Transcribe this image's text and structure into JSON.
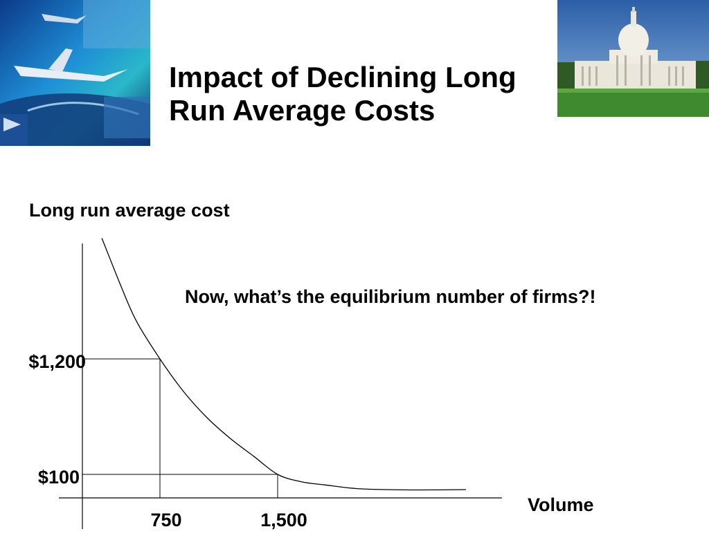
{
  "slide": {
    "title_line1": "Impact of Declining Long",
    "title_line2": "Run Average Costs",
    "question": "Now, what’s the equilibrium number of firms?!"
  },
  "images": {
    "left_icon": "aircraft-collage-image",
    "right_icon": "capitol-building-image"
  },
  "chart_data": {
    "type": "line",
    "title": "",
    "ylabel": "Long run average cost",
    "xlabel": "Volume",
    "series": [
      {
        "x": [
          380,
          500,
          600,
          750,
          900,
          1050,
          1200,
          1350,
          1500,
          1650,
          1800,
          2000,
          2200,
          2400,
          2700
        ],
        "y": [
          2350,
          1900,
          1560,
          1200,
          890,
          640,
          440,
          270,
          100,
          30,
          0,
          -35,
          -45,
          -48,
          -45
        ]
      }
    ],
    "guides": [
      {
        "x": 750,
        "y": 1200
      },
      {
        "x": 1500,
        "y": 100
      }
    ],
    "x_ticks": [
      {
        "value": 750,
        "label": "750"
      },
      {
        "value": 1500,
        "label": "1,500"
      }
    ],
    "y_ticks": [
      {
        "value": 1200,
        "label": "$1,200"
      },
      {
        "value": 100,
        "label": "$100"
      }
    ],
    "colors": {
      "curve": "#000000",
      "axis": "#000000"
    }
  }
}
